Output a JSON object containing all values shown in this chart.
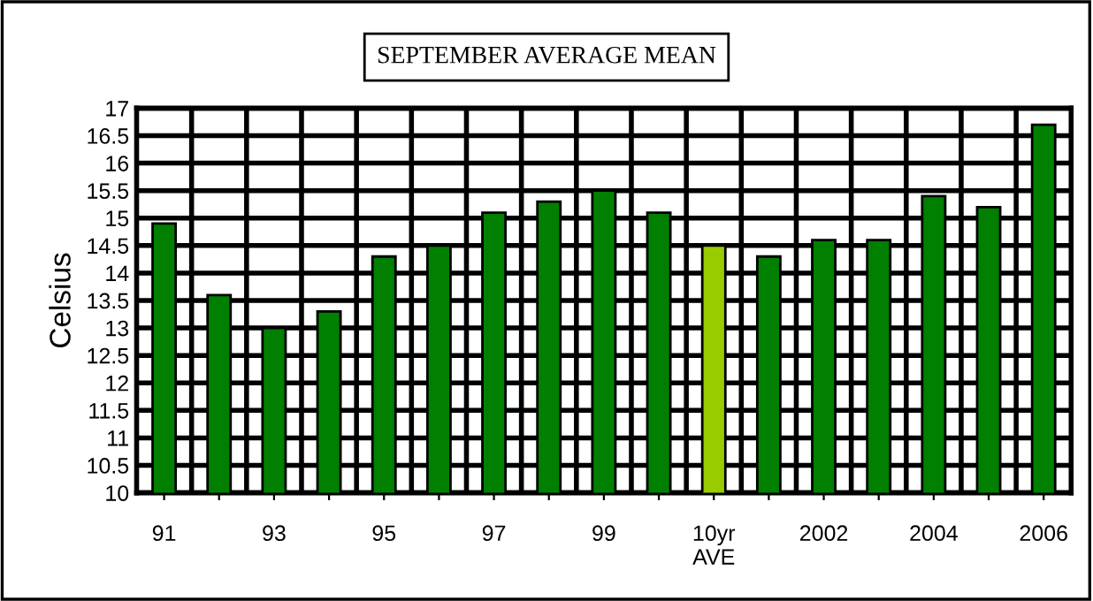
{
  "chart_data": {
    "type": "bar",
    "title": "SEPTEMBER AVERAGE MEAN",
    "ylabel": "Celsius",
    "categories": [
      "91",
      null,
      "93",
      null,
      "95",
      null,
      "97",
      null,
      "99",
      null,
      "10yr\nAVE",
      null,
      "2002",
      null,
      "2004",
      null,
      "2006"
    ],
    "values": [
      14.9,
      13.6,
      13.0,
      13.3,
      14.3,
      14.5,
      15.1,
      15.3,
      15.5,
      15.1,
      14.5,
      14.3,
      14.6,
      14.6,
      15.4,
      15.2,
      16.7
    ],
    "colors": [
      "#007f00",
      "#007f00",
      "#007f00",
      "#007f00",
      "#007f00",
      "#007f00",
      "#007f00",
      "#007f00",
      "#007f00",
      "#007f00",
      "#99cc00",
      "#007f00",
      "#007f00",
      "#007f00",
      "#007f00",
      "#007f00",
      "#007f00"
    ],
    "ylim": [
      10,
      17
    ],
    "yticks": [
      10,
      10.5,
      11,
      11.5,
      12,
      12.5,
      13,
      13.5,
      14,
      14.5,
      15,
      15.5,
      16,
      16.5,
      17
    ],
    "grid": true
  }
}
